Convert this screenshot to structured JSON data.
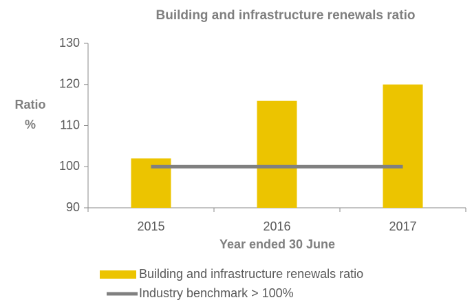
{
  "chart_data": {
    "type": "bar",
    "title": "Building and infrastructure renewals ratio",
    "ylabel_lines": [
      "Ratio",
      "%"
    ],
    "xlabel": "Year ended 30 June",
    "categories": [
      "2015",
      "2016",
      "2017"
    ],
    "series": [
      {
        "name": "Building and infrastructure renewals ratio",
        "type": "bar",
        "color": "#ecc400",
        "values": [
          102,
          116,
          120
        ]
      },
      {
        "name": "Industry benchmark > 100%",
        "type": "line",
        "color": "#808080",
        "values": [
          100,
          100,
          100
        ]
      }
    ],
    "ylim": [
      90,
      130
    ],
    "yticks": [
      90,
      100,
      110,
      120,
      130
    ],
    "grid": false
  }
}
